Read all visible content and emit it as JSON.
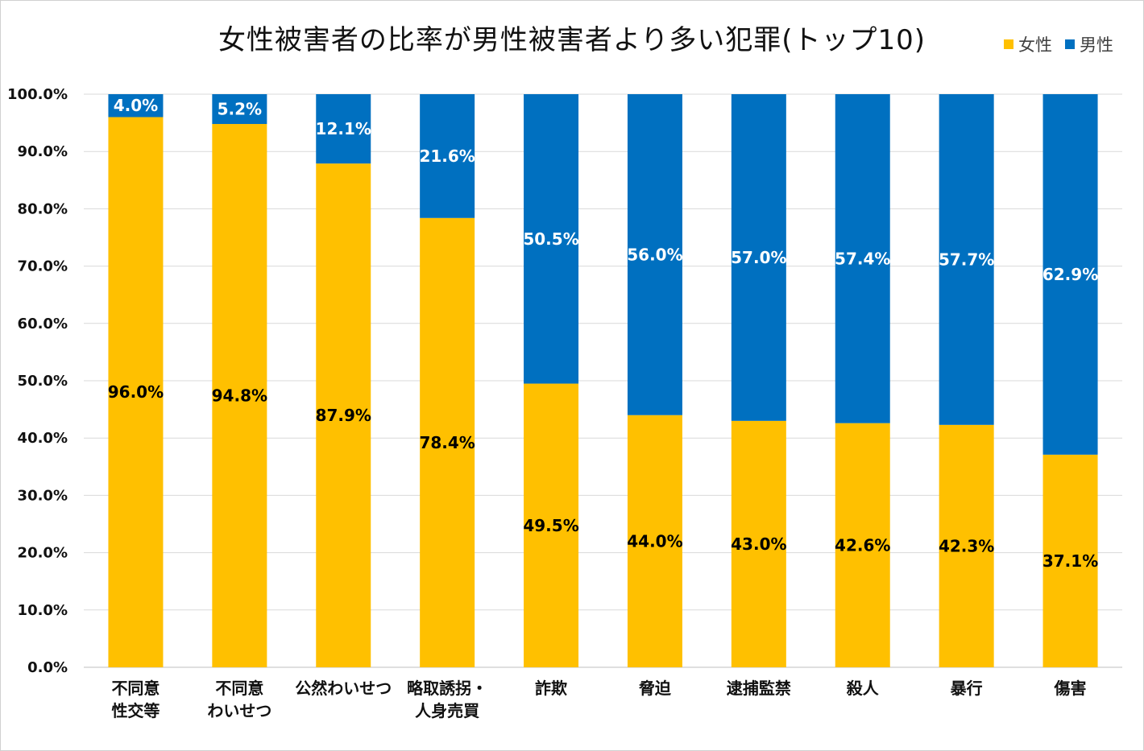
{
  "chart_data": {
    "type": "bar",
    "stacked": true,
    "title": "女性被害者の比率が男性被害者より多い犯罪(トップ10)",
    "categories": [
      [
        "不同意",
        "性交等"
      ],
      [
        "不同意",
        "わいせつ"
      ],
      [
        "公然わいせつ"
      ],
      [
        "略取誘拐・",
        "人身売買"
      ],
      [
        "詐欺"
      ],
      [
        "脅迫"
      ],
      [
        "逮捕監禁"
      ],
      [
        "殺人"
      ],
      [
        "暴行"
      ],
      [
        "傷害"
      ]
    ],
    "series": [
      {
        "name": "女性",
        "color": "#FFC000",
        "label_color": "#000000",
        "values": [
          96.0,
          94.8,
          87.9,
          78.4,
          49.5,
          44.0,
          43.0,
          42.6,
          42.3,
          37.1
        ]
      },
      {
        "name": "男性",
        "color": "#0070C0",
        "label_color": "#FFFFFF",
        "values": [
          4.0,
          5.2,
          12.1,
          21.6,
          50.5,
          56.0,
          57.0,
          57.4,
          57.7,
          62.9
        ]
      }
    ],
    "ylim": [
      0,
      100
    ],
    "yticks": [
      0,
      10,
      20,
      30,
      40,
      50,
      60,
      70,
      80,
      90,
      100
    ],
    "value_format": "percent_1dp",
    "grid": true,
    "legend_position": "top-right"
  }
}
